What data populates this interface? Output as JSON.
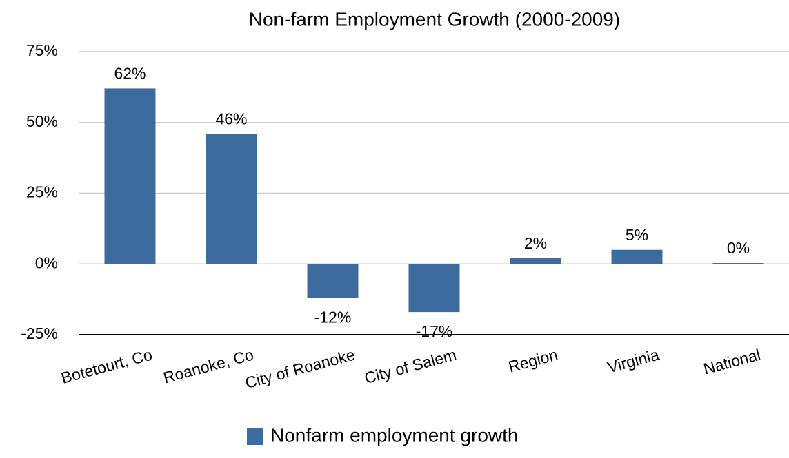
{
  "chart_data": {
    "type": "bar",
    "title": "Non-farm Employment Growth (2000-2009)",
    "categories": [
      "Botetourt, Co",
      "Roanoke, Co",
      "City of Roanoke",
      "City of Salem",
      "Region",
      "Virginia",
      "National"
    ],
    "series": [
      {
        "name": "Nonfarm employment growth",
        "color": "#3d6b9e",
        "values": [
          62,
          46,
          -12,
          -17,
          2,
          5,
          0.3
        ],
        "value_labels": [
          "62%",
          "46%",
          "-12%",
          "-17%",
          "2%",
          "5%",
          "0%"
        ]
      }
    ],
    "ylim": [
      -25,
      75
    ],
    "yticks": [
      {
        "value": -25,
        "label": "-25%"
      },
      {
        "value": 0,
        "label": "0%"
      },
      {
        "value": 25,
        "label": "25%"
      },
      {
        "value": 50,
        "label": "50%"
      },
      {
        "value": 75,
        "label": "75%"
      }
    ],
    "grid": true,
    "legend": "bottom"
  }
}
